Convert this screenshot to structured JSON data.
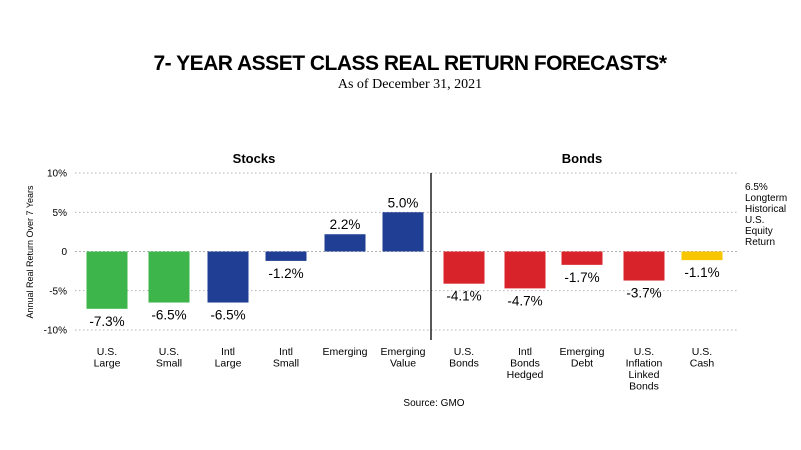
{
  "title": "7- YEAR ASSET CLASS REAL RETURN FORECASTS*",
  "subtitle": "As of December 31, 2021",
  "source": "Source: GMO",
  "groups": {
    "stocks": "Stocks",
    "bonds": "Bonds"
  },
  "side_note": [
    "6.5%",
    "Longterm",
    "Historical",
    "U.S.",
    "Equity",
    "Return"
  ],
  "colors": {
    "green": "#3db54a",
    "blue": "#203f94",
    "red": "#d8232a",
    "yellow": "#f7c600"
  },
  "chart_data": {
    "type": "bar",
    "title": "7- YEAR ASSET CLASS REAL RETURN FORECASTS*",
    "subtitle": "As of December 31, 2021",
    "ylabel": "Annual Real Return Over 7 Years",
    "xlabel": "",
    "ylim": [
      -10,
      10
    ],
    "yticks": [
      10,
      5,
      0,
      -5,
      -10
    ],
    "ytick_labels": [
      "10%",
      "5%",
      "0",
      "-5%",
      "-10%"
    ],
    "grid": "dotted horizontal",
    "categories": [
      [
        "U.S.",
        "Large"
      ],
      [
        "U.S.",
        "Small"
      ],
      [
        "Intl",
        "Large"
      ],
      [
        "Intl",
        "Small"
      ],
      [
        "Emerging"
      ],
      [
        "Emerging",
        "Value"
      ],
      [
        "U.S.",
        "Bonds"
      ],
      [
        "Intl",
        "Bonds",
        "Hedged"
      ],
      [
        "Emerging",
        "Debt"
      ],
      [
        "U.S.",
        "Inflation",
        "Linked",
        "Bonds"
      ],
      [
        "U.S.",
        "Cash"
      ]
    ],
    "values": [
      -7.3,
      -6.5,
      -6.5,
      -1.2,
      2.2,
      5.0,
      -4.1,
      -4.7,
      -1.7,
      -3.7,
      -1.1
    ],
    "value_labels": [
      "-7.3%",
      "-6.5%",
      "-6.5%",
      "-1.2%",
      "2.2%",
      "5.0%",
      "-4.1%",
      "-4.7%",
      "-1.7%",
      "-3.7%",
      "-1.1%"
    ],
    "bar_colors": [
      "#3db54a",
      "#3db54a",
      "#203f94",
      "#203f94",
      "#203f94",
      "#203f94",
      "#d8232a",
      "#d8232a",
      "#d8232a",
      "#d8232a",
      "#f7c600"
    ],
    "groups": [
      {
        "name": "Stocks",
        "indices": [
          0,
          1,
          2,
          3,
          4,
          5
        ]
      },
      {
        "name": "Bonds",
        "indices": [
          6,
          7,
          8,
          9,
          10
        ]
      }
    ]
  }
}
